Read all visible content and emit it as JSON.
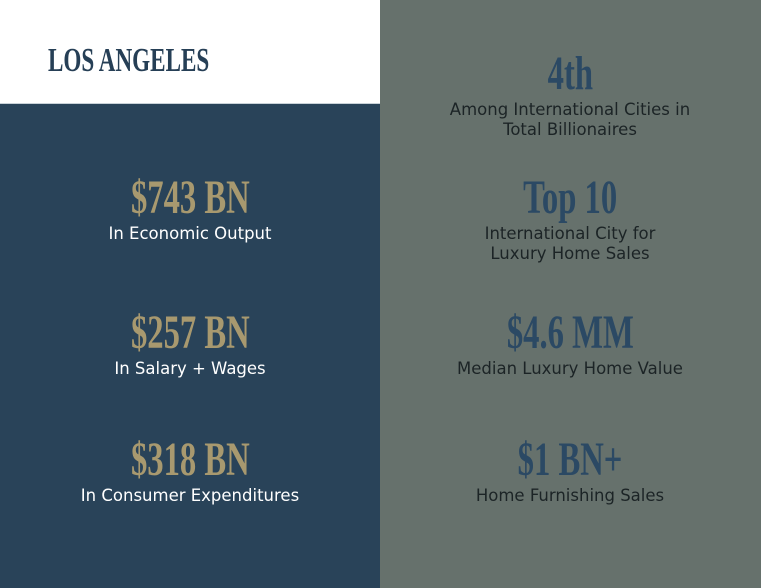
{
  "title": "LOS ANGELES",
  "colors": {
    "navy": "#294359",
    "gray": "#66716c",
    "gold": "#a8996f",
    "blue": "#2b4964"
  },
  "left_stats": [
    {
      "value": "$743 BN",
      "label": "In Economic Output"
    },
    {
      "value": "$257 BN",
      "label": "In Salary + Wages"
    },
    {
      "value": "$318 BN",
      "label": "In Consumer Expenditures"
    }
  ],
  "right_stats": [
    {
      "value": "4th",
      "label": "Among International Cities in\nTotal Billionaires"
    },
    {
      "value": "Top 10",
      "label": "International City for\nLuxury Home Sales"
    },
    {
      "value": "$4.6 MM",
      "label": "Median Luxury Home Value"
    },
    {
      "value": "$1 BN+",
      "label": "Home Furnishing Sales"
    }
  ]
}
